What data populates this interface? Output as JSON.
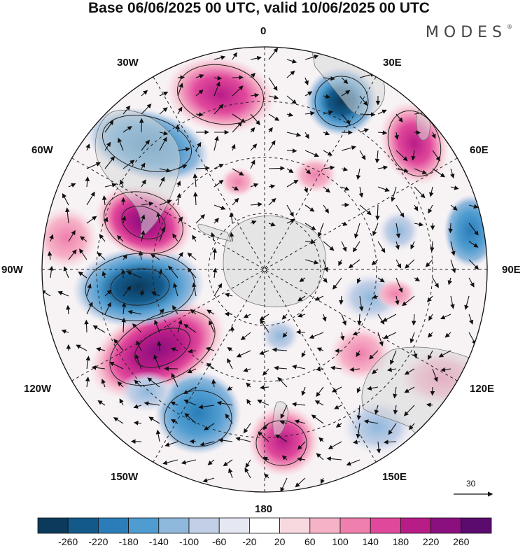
{
  "title": "Base 06/06/2025 00 UTC, valid 10/06/2025 00 UTC",
  "logo": "MODES",
  "logo_mark": "®",
  "longitude_labels": {
    "lon_0": "0",
    "lon_30e": "30E",
    "lon_60e": "60E",
    "lon_90e": "90E",
    "lon_120e": "120E",
    "lon_150e": "150E",
    "lon_180": "180",
    "lon_150w": "150W",
    "lon_120w": "120W",
    "lon_90w": "90W",
    "lon_60w": "60W",
    "lon_30w": "30W"
  },
  "vector_scale_label": "30",
  "colorbar": {
    "ticks": [
      "-260",
      "-220",
      "-180",
      "-140",
      "-100",
      "-60",
      "-20",
      "20",
      "60",
      "100",
      "140",
      "180",
      "220",
      "260"
    ],
    "colors": [
      "#0c3a5c",
      "#13598a",
      "#2a7db8",
      "#4f9cd0",
      "#8fb8dc",
      "#c2cfe6",
      "#e5e7f2",
      "#ffffff",
      "#f9d9e0",
      "#f6b3c7",
      "#ef7fad",
      "#e0489b",
      "#b81c87",
      "#8a0f7f",
      "#5b0a6e"
    ]
  },
  "colors": {
    "negative_strong": "#0c3a5c",
    "positive_strong": "#5b0a6e",
    "land": "#d9d9d9"
  }
}
